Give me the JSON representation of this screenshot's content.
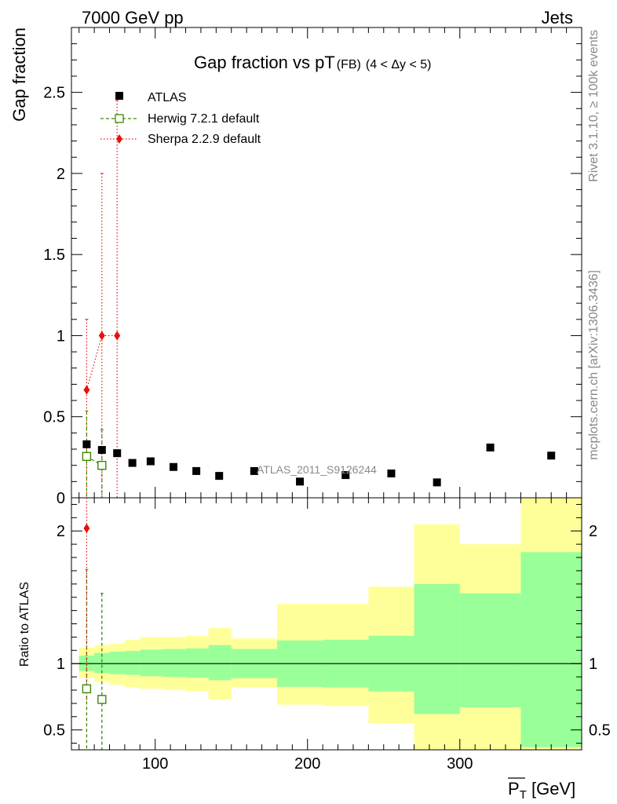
{
  "header": {
    "left": "7000 GeV pp",
    "right": "Jets"
  },
  "side_labels": {
    "rivet": "Rivet 3.1.10, ≥ 100k events",
    "mcplots": "mcplots.cern.ch [arXiv:1306.3436]"
  },
  "chart_data": [
    {
      "type": "scatter",
      "title": "Gap fraction vs pT",
      "title_suffix": "(FB)",
      "title_cut": "(4 < Δy < 5)",
      "ylabel": "Gap fraction",
      "watermark": "ATLAS_2011_S9126244",
      "xlim": [
        45,
        380
      ],
      "ylim": [
        0,
        2.9
      ],
      "y_ticks": [
        0,
        0.5,
        1,
        1.5,
        2,
        2.5
      ],
      "y_tick_labels": [
        "0",
        "0.5",
        "1",
        "1.5",
        "2",
        "2.5"
      ],
      "legend_position": "top-left",
      "legend": [
        "ATLAS",
        "Herwig 7.2.1 default",
        "Sherpa 2.2.9 default"
      ],
      "series": [
        {
          "name": "ATLAS",
          "color": "#000000",
          "marker": "square",
          "points": [
            {
              "x": 55,
              "y": 0.33
            },
            {
              "x": 65,
              "y": 0.295
            },
            {
              "x": 75,
              "y": 0.275
            },
            {
              "x": 85,
              "y": 0.215
            },
            {
              "x": 97,
              "y": 0.225
            },
            {
              "x": 112,
              "y": 0.19
            },
            {
              "x": 127,
              "y": 0.165
            },
            {
              "x": 142,
              "y": 0.135
            },
            {
              "x": 165,
              "y": 0.165
            },
            {
              "x": 195,
              "y": 0.1
            },
            {
              "x": 225,
              "y": 0.14
            },
            {
              "x": 255,
              "y": 0.15
            },
            {
              "x": 285,
              "y": 0.095
            },
            {
              "x": 320,
              "y": 0.31
            },
            {
              "x": 360,
              "y": 0.26
            }
          ]
        },
        {
          "name": "Herwig 7.2.1 default",
          "color": "#3a8a00",
          "marker": "open-square",
          "line": "dashed",
          "points": [
            {
              "x": 55,
              "y": 0.255,
              "err_low": 0.255,
              "err_high": 0.28
            },
            {
              "x": 65,
              "y": 0.2,
              "err_low": 0.2,
              "err_high": 0.22
            }
          ]
        },
        {
          "name": "Sherpa 2.2.9 default",
          "color": "#e8100c",
          "marker": "diamond",
          "line": "dotted",
          "points": [
            {
              "x": 55,
              "y": 0.665,
              "err_low": 0.665,
              "err_high": 0.435
            },
            {
              "x": 65,
              "y": 1.0,
              "err_low": 1.0,
              "err_high": 1.0
            },
            {
              "x": 75,
              "y": 1.0,
              "err_low": 1.0,
              "err_high": 1.45
            }
          ]
        }
      ]
    },
    {
      "type": "scatter",
      "ylabel": "Ratio to ATLAS",
      "xlabel": "P_T [GeV]",
      "xlabel_main": "P",
      "xlabel_sub": "T",
      "xlabel_unit": " [GeV]",
      "xlim": [
        45,
        380
      ],
      "ylim": [
        0.35,
        2.25
      ],
      "x_ticks": [
        100,
        200,
        300
      ],
      "x_tick_labels": [
        "100",
        "200",
        "300"
      ],
      "y_ticks": [
        0.5,
        1,
        2
      ],
      "y_tick_labels": [
        "0.5",
        "1",
        "2"
      ],
      "reference_line": 1.0,
      "colors": {
        "band_inner": "#99ff99",
        "band_outer": "#ffff99"
      },
      "bands": [
        {
          "x0": 50,
          "x1": 60,
          "inner": [
            0.945,
            1.06
          ],
          "outer": [
            0.89,
            1.12
          ]
        },
        {
          "x0": 60,
          "x1": 70,
          "inner": [
            0.93,
            1.08
          ],
          "outer": [
            0.86,
            1.14
          ]
        },
        {
          "x0": 70,
          "x1": 80,
          "inner": [
            0.92,
            1.09
          ],
          "outer": [
            0.84,
            1.15
          ]
        },
        {
          "x0": 80,
          "x1": 90,
          "inner": [
            0.915,
            1.095
          ],
          "outer": [
            0.82,
            1.18
          ]
        },
        {
          "x0": 90,
          "x1": 105,
          "inner": [
            0.905,
            1.105
          ],
          "outer": [
            0.81,
            1.2
          ]
        },
        {
          "x0": 105,
          "x1": 120,
          "inner": [
            0.9,
            1.11
          ],
          "outer": [
            0.8,
            1.2
          ]
        },
        {
          "x0": 120,
          "x1": 135,
          "inner": [
            0.895,
            1.115
          ],
          "outer": [
            0.79,
            1.21
          ]
        },
        {
          "x0": 135,
          "x1": 150,
          "inner": [
            0.875,
            1.14
          ],
          "outer": [
            0.73,
            1.27
          ]
        },
        {
          "x0": 150,
          "x1": 180,
          "inner": [
            0.89,
            1.11
          ],
          "outer": [
            0.82,
            1.19
          ]
        },
        {
          "x0": 180,
          "x1": 210,
          "inner": [
            0.825,
            1.175
          ],
          "outer": [
            0.69,
            1.45
          ]
        },
        {
          "x0": 210,
          "x1": 240,
          "inner": [
            0.82,
            1.18
          ],
          "outer": [
            0.68,
            1.45
          ]
        },
        {
          "x0": 240,
          "x1": 270,
          "inner": [
            0.79,
            1.21
          ],
          "outer": [
            0.55,
            1.58
          ]
        },
        {
          "x0": 270,
          "x1": 300,
          "inner": [
            0.62,
            1.6
          ],
          "outer": [
            0.35,
            2.05
          ]
        },
        {
          "x0": 300,
          "x1": 340,
          "inner": [
            0.67,
            1.53
          ],
          "outer": [
            0.35,
            1.9
          ]
        },
        {
          "x0": 340,
          "x1": 380,
          "inner": [
            0.37,
            1.84
          ],
          "outer": [
            0.35,
            2.25
          ]
        }
      ],
      "series": [
        {
          "name": "Herwig 7.2.1 default",
          "color": "#3a8a00",
          "points": [
            {
              "x": 55,
              "y": 0.81,
              "err_low": 0.81,
              "err_high": 0.9
            },
            {
              "x": 65,
              "y": 0.73,
              "err_low": 0.73,
              "err_high": 0.8
            }
          ]
        },
        {
          "name": "Sherpa 2.2.9 default",
          "color": "#e8100c",
          "points": [
            {
              "x": 55,
              "y": 2.02,
              "err_low": 1.3,
              "err_high": 0.3
            }
          ]
        }
      ]
    }
  ]
}
